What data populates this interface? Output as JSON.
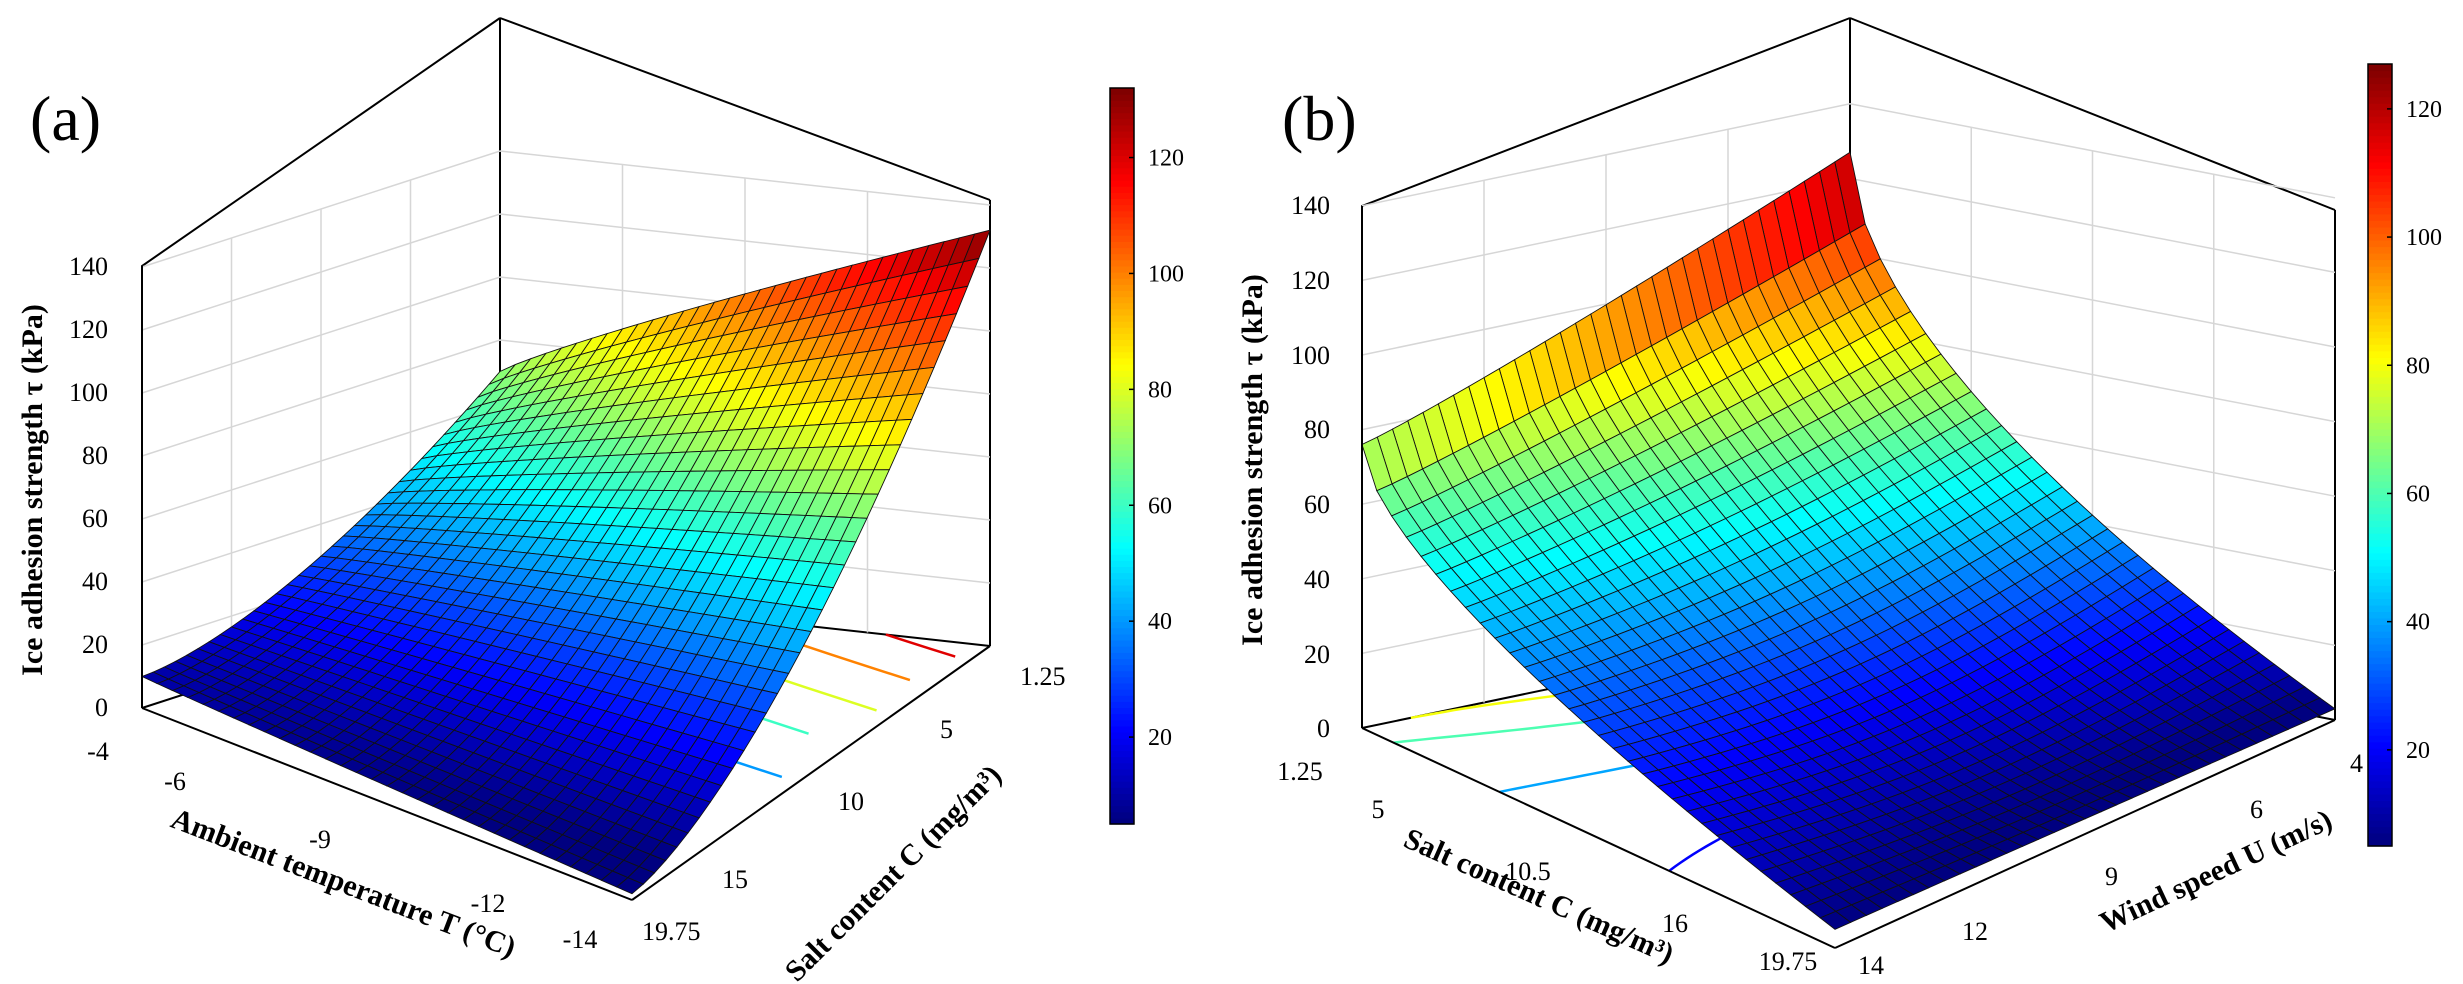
{
  "chart_data": [
    {
      "panel_label": "(a)",
      "type": "surface3d",
      "x_variable": "Ambient temperature",
      "xlabel": "Ambient temperature T (°C)",
      "xticks": [
        "-4",
        "-6",
        "-9",
        "-12",
        "-14"
      ],
      "xlim": [
        -14,
        -4
      ],
      "y_variable": "Salt content",
      "ylabel": "Salt content C (mg/m³)",
      "yticks": [
        "1.25",
        "5",
        "10",
        "15",
        "19.75"
      ],
      "ylim": [
        1.25,
        19.75
      ],
      "zlabel": "Ice adhesion strength τ (kPa)",
      "zticks": [
        "0",
        "20",
        "40",
        "60",
        "80",
        "100",
        "120",
        "140"
      ],
      "zlim": [
        0,
        140
      ],
      "colormap": "jet",
      "colorbar_ticks": [
        "20",
        "40",
        "60",
        "80",
        "100",
        "120"
      ],
      "colorbar_range": [
        5,
        132
      ],
      "corner_values": {
        "T_-4_C_19.75": 10,
        "T_-14_C_19.75": 2,
        "T_-4_C_1.25": 70,
        "T_-14_C_1.25": 132
      },
      "contour_levels": [
        20,
        40,
        60,
        80,
        100,
        120
      ]
    },
    {
      "panel_label": "(b)",
      "type": "surface3d",
      "x_variable": "Wind speed",
      "xlabel": "Wind speed U (m/s)",
      "xticks": [
        "4",
        "6",
        "9",
        "12",
        "14"
      ],
      "xlim": [
        4,
        14
      ],
      "y_variable": "Salt content",
      "ylabel": "Salt content C (mg/m³)",
      "yticks": [
        "1.25",
        "5",
        "10.5",
        "16",
        "19.75"
      ],
      "ylim": [
        1.25,
        19.75
      ],
      "zlabel": "Ice adhesion strength τ (kPa)",
      "zticks": [
        "0",
        "20",
        "40",
        "60",
        "80",
        "100",
        "120",
        "140"
      ],
      "zlim": [
        0,
        140
      ],
      "colormap": "jet",
      "colorbar_ticks": [
        "20",
        "40",
        "60",
        "80",
        "100",
        "120"
      ],
      "colorbar_range": [
        5,
        127
      ],
      "corner_values": {
        "U_4_C_19.75": 3,
        "U_14_C_19.75": 5,
        "U_4_C_1.25": 127,
        "U_14_C_1.25": 76
      },
      "contour_levels": [
        20,
        40,
        60,
        80
      ]
    }
  ]
}
